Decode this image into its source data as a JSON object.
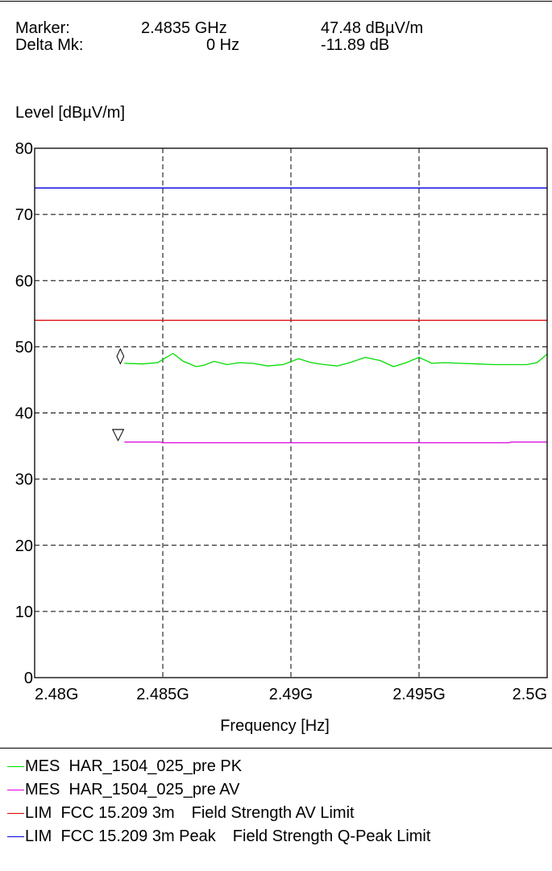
{
  "marker": {
    "label": "Marker:",
    "freq": "2.4835 GHz",
    "level": "47.48 dBµV/m"
  },
  "delta": {
    "label": "Delta Mk:",
    "freq": "0 Hz",
    "level": "-11.89 dB"
  },
  "chart_data": {
    "type": "line",
    "ylabel": "Level [dBµV/m]",
    "xlabel": "Frequency [Hz]",
    "xlim": [
      2.48,
      2.5
    ],
    "ylim": [
      0,
      80
    ],
    "x_unit": "GHz",
    "grid": true,
    "legend_position": "bottom",
    "x_ticks": [
      {
        "value": 2.48,
        "label": "2.48G"
      },
      {
        "value": 2.485,
        "label": "2.485G"
      },
      {
        "value": 2.49,
        "label": "2.49G"
      },
      {
        "value": 2.495,
        "label": "2.495G"
      },
      {
        "value": 2.5,
        "label": "2.5G"
      }
    ],
    "y_ticks": [
      {
        "value": 0,
        "label": "0"
      },
      {
        "value": 10,
        "label": "10"
      },
      {
        "value": 20,
        "label": "20"
      },
      {
        "value": 30,
        "label": "30"
      },
      {
        "value": 40,
        "label": "40"
      },
      {
        "value": 50,
        "label": "50"
      },
      {
        "value": 60,
        "label": "60"
      },
      {
        "value": 70,
        "label": "70"
      },
      {
        "value": 80,
        "label": "80"
      }
    ],
    "series": [
      {
        "name": "MES  HAR_1504_025_pre PK",
        "color": "#00dd00",
        "x": [
          2.4835,
          2.4842,
          2.4848,
          2.4854,
          2.4858,
          2.4863,
          2.4866,
          2.487,
          2.4875,
          2.488,
          2.4885,
          2.4891,
          2.4897,
          2.4903,
          2.4908,
          2.4913,
          2.4918,
          2.4923,
          2.4929,
          2.4935,
          2.494,
          2.4945,
          2.495,
          2.4955,
          2.496,
          2.4966,
          2.4973,
          2.4979,
          2.4986,
          2.4992,
          2.4996,
          2.5
        ],
        "y": [
          47.5,
          47.4,
          47.6,
          49.0,
          47.8,
          47.0,
          47.2,
          47.8,
          47.3,
          47.6,
          47.5,
          47.1,
          47.3,
          48.2,
          47.6,
          47.3,
          47.1,
          47.6,
          48.4,
          47.9,
          47.0,
          47.6,
          48.4,
          47.5,
          47.6,
          47.5,
          47.4,
          47.3,
          47.3,
          47.3,
          47.6,
          48.9
        ]
      },
      {
        "name": "MES  HAR_1504_025_pre AV",
        "color": "#dd00dd",
        "x": [
          2.4835,
          2.4849,
          2.485,
          2.4985,
          2.4986,
          2.5
        ],
        "y": [
          35.6,
          35.6,
          35.5,
          35.5,
          35.6,
          35.6
        ]
      },
      {
        "name": "LIM  FCC 15.209 3m",
        "name_suffix": "Field Strength AV Limit",
        "color": "#dd0000",
        "x": [
          2.48,
          2.5
        ],
        "y": [
          54,
          54
        ]
      },
      {
        "name": "LIM  FCC 15.209 3m Peak",
        "name_suffix": "Field Strength Q-Peak Limit",
        "color": "#0000dd",
        "x": [
          2.48,
          2.5
        ],
        "y": [
          74,
          74
        ]
      }
    ],
    "markers": [
      {
        "symbol": "◊",
        "x": 2.4835,
        "y": 47.48
      },
      {
        "symbol": "▽",
        "x": 2.4835,
        "y": 35.6
      }
    ]
  }
}
